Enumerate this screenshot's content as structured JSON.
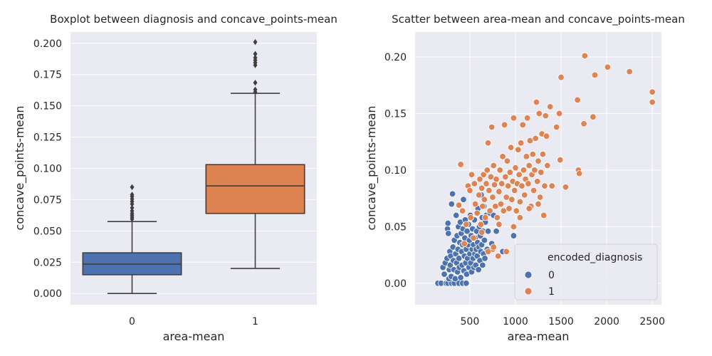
{
  "chart_data": [
    {
      "type": "box",
      "title": "Boxplot between diagnosis and concave_points-mean",
      "xlabel": "area-mean",
      "ylabel": "concave_points-mean",
      "ylim": [
        -0.009,
        0.209
      ],
      "yticks": [
        "0.000",
        "0.025",
        "0.050",
        "0.075",
        "0.100",
        "0.125",
        "0.150",
        "0.175",
        "0.200"
      ],
      "ytick_values": [
        0,
        0.025,
        0.05,
        0.075,
        0.1,
        0.125,
        0.15,
        0.175,
        0.2
      ],
      "categories": [
        "0",
        "1"
      ],
      "colors": [
        "#4c72b0",
        "#dd8452"
      ],
      "grid": true,
      "boxes": [
        {
          "category": "0",
          "whisker_low": 0.0,
          "q1": 0.015,
          "median": 0.0235,
          "q3": 0.0325,
          "whisker_high": 0.0575,
          "outliers": [
            0.0595,
            0.061,
            0.0625,
            0.064,
            0.066,
            0.0685,
            0.0715,
            0.0735,
            0.0755,
            0.0775,
            0.079,
            0.085
          ]
        },
        {
          "category": "1",
          "whisker_low": 0.02,
          "q1": 0.064,
          "median": 0.086,
          "q3": 0.103,
          "whisker_high": 0.16,
          "outliers": [
            0.161,
            0.163,
            0.1685,
            0.1825,
            0.1845,
            0.1865,
            0.1885,
            0.1915,
            0.201
          ]
        }
      ]
    },
    {
      "type": "scatter",
      "title": "Scatter between area-mean and concave_points-mean",
      "xlabel": "area-mean",
      "ylabel": "concave_points-mean",
      "xlim": [
        -100,
        2600
      ],
      "ylim": [
        -0.019,
        0.222
      ],
      "xticks": [
        "500",
        "1000",
        "1500",
        "2000",
        "2500"
      ],
      "xtick_values": [
        500,
        1000,
        1500,
        2000,
        2500
      ],
      "yticks": [
        "0.00",
        "0.05",
        "0.10",
        "0.15",
        "0.20"
      ],
      "ytick_values": [
        0,
        0.05,
        0.1,
        0.15,
        0.2
      ],
      "grid": true,
      "legend": {
        "title": "encoded_diagnosis",
        "position": "lower right"
      },
      "series": [
        {
          "name": "0",
          "color": "#4c72b0",
          "points": [
            [
              150,
              0.0
            ],
            [
              185,
              0.0
            ],
            [
              240,
              0.0
            ],
            [
              260,
              0.0
            ],
            [
              300,
              0.0
            ],
            [
              330,
              0.0
            ],
            [
              380,
              0.0
            ],
            [
              420,
              0.0
            ],
            [
              460,
              0.0
            ],
            [
              205,
              0.014
            ],
            [
              220,
              0.008
            ],
            [
              230,
              0.018
            ],
            [
              250,
              0.022
            ],
            [
              255,
              0.048
            ],
            [
              260,
              0.053
            ],
            [
              265,
              0.044
            ],
            [
              270,
              0.004
            ],
            [
              275,
              0.012
            ],
            [
              280,
              0.028
            ],
            [
              285,
              0.016
            ],
            [
              290,
              0.024
            ],
            [
              295,
              0.006
            ],
            [
              300,
              0.07
            ],
            [
              310,
              0.079
            ],
            [
              315,
              0.032
            ],
            [
              320,
              0.02
            ],
            [
              325,
              0.012
            ],
            [
              330,
              0.038
            ],
            [
              340,
              0.004
            ],
            [
              345,
              0.026
            ],
            [
              350,
              0.06
            ],
            [
              355,
              0.018
            ],
            [
              360,
              0.042
            ],
            [
              365,
              0.01
            ],
            [
              370,
              0.03
            ],
            [
              375,
              0.05
            ],
            [
              380,
              0.022
            ],
            [
              385,
              0.014
            ],
            [
              390,
              0.036
            ],
            [
              395,
              0.054
            ],
            [
              400,
              0.005
            ],
            [
              405,
              0.044
            ],
            [
              410,
              0.028
            ],
            [
              415,
              0.016
            ],
            [
              420,
              0.034
            ],
            [
              425,
              0.048
            ],
            [
              430,
              0.074
            ],
            [
              435,
              0.011
            ],
            [
              440,
              0.024
            ],
            [
              445,
              0.04
            ],
            [
              450,
              0.056
            ],
            [
              455,
              0.018
            ],
            [
              460,
              0.03
            ],
            [
              465,
              0.008
            ],
            [
              470,
              0.046
            ],
            [
              475,
              0.022
            ],
            [
              480,
              0.034
            ],
            [
              485,
              0.052
            ],
            [
              490,
              0.014
            ],
            [
              495,
              0.038
            ],
            [
              500,
              0.026
            ],
            [
              505,
              0.06
            ],
            [
              510,
              0.018
            ],
            [
              515,
              0.042
            ],
            [
              520,
              0.01
            ],
            [
              525,
              0.03
            ],
            [
              530,
              0.048
            ],
            [
              535,
              0.022
            ],
            [
              540,
              0.034
            ],
            [
              545,
              0.014
            ],
            [
              550,
              0.056
            ],
            [
              555,
              0.026
            ],
            [
              560,
              0.04
            ],
            [
              565,
              0.016
            ],
            [
              570,
              0.03
            ],
            [
              575,
              0.046
            ],
            [
              580,
              0.024
            ],
            [
              585,
              0.036
            ],
            [
              590,
              0.066
            ],
            [
              595,
              0.012
            ],
            [
              600,
              0.032
            ],
            [
              605,
              0.05
            ],
            [
              610,
              0.02
            ],
            [
              615,
              0.042
            ],
            [
              620,
              0.028
            ],
            [
              625,
              0.078
            ],
            [
              630,
              0.034
            ],
            [
              635,
              0.058
            ],
            [
              640,
              0.016
            ],
            [
              645,
              0.046
            ],
            [
              650,
              0.026
            ],
            [
              655,
              0.068
            ],
            [
              660,
              0.038
            ],
            [
              665,
              0.022
            ],
            [
              670,
              0.054
            ],
            [
              680,
              0.06
            ],
            [
              690,
              0.03
            ],
            [
              700,
              0.046
            ],
            [
              720,
              0.062
            ],
            [
              740,
              0.035
            ],
            [
              760,
              0.06
            ],
            [
              790,
              0.046
            ],
            [
              860,
              0.028
            ],
            [
              980,
              0.042
            ]
          ]
        },
        {
          "name": "1",
          "color": "#dd8452",
          "points": [
            [
              380,
              0.069
            ],
            [
              400,
              0.105
            ],
            [
              420,
              0.064
            ],
            [
              440,
              0.035
            ],
            [
              460,
              0.052
            ],
            [
              480,
              0.086
            ],
            [
              500,
              0.082
            ],
            [
              510,
              0.058
            ],
            [
              520,
              0.096
            ],
            [
              540,
              0.04
            ],
            [
              550,
              0.088
            ],
            [
              560,
              0.07
            ],
            [
              580,
              0.062
            ],
            [
              600,
              0.078
            ],
            [
              610,
              0.092
            ],
            [
              620,
              0.052
            ],
            [
              630,
              0.084
            ],
            [
              640,
              0.068
            ],
            [
              650,
              0.096
            ],
            [
              660,
              0.074
            ],
            [
              670,
              0.058
            ],
            [
              680,
              0.088
            ],
            [
              690,
              0.1
            ],
            [
              700,
              0.124
            ],
            [
              710,
              0.082
            ],
            [
              720,
              0.064
            ],
            [
              730,
              0.094
            ],
            [
              740,
              0.138
            ],
            [
              750,
              0.076
            ],
            [
              760,
              0.104
            ],
            [
              770,
              0.087
            ],
            [
              780,
              0.068
            ],
            [
              790,
              0.092
            ],
            [
              800,
              0.058
            ],
            [
              810,
              0.024
            ],
            [
              820,
              0.081
            ],
            [
              830,
              0.1
            ],
            [
              840,
              0.07
            ],
            [
              850,
              0.088
            ],
            [
              860,
              0.112
            ],
            [
              870,
              0.064
            ],
            [
              880,
              0.14
            ],
            [
              890,
              0.094
            ],
            [
              900,
              0.076
            ],
            [
              910,
              0.108
            ],
            [
              920,
              0.086
            ],
            [
              930,
              0.066
            ],
            [
              940,
              0.098
            ],
            [
              950,
              0.12
            ],
            [
              960,
              0.074
            ],
            [
              970,
              0.09
            ],
            [
              980,
              0.146
            ],
            [
              990,
              0.082
            ],
            [
              1000,
              0.102
            ],
            [
              1010,
              0.064
            ],
            [
              1020,
              0.088
            ],
            [
              1030,
              0.118
            ],
            [
              1040,
              0.096
            ],
            [
              1050,
              0.072
            ],
            [
              1060,
              0.124
            ],
            [
              1070,
              0.086
            ],
            [
              1080,
              0.14
            ],
            [
              1090,
              0.1
            ],
            [
              1100,
              0.078
            ],
            [
              1110,
              0.092
            ],
            [
              1120,
              0.112
            ],
            [
              1130,
              0.146
            ],
            [
              1140,
              0.088
            ],
            [
              1150,
              0.104
            ],
            [
              1160,
              0.126
            ],
            [
              1170,
              0.068
            ],
            [
              1180,
              0.096
            ],
            [
              1190,
              0.114
            ],
            [
              1200,
              0.082
            ],
            [
              1210,
              0.1
            ],
            [
              1220,
              0.128
            ],
            [
              1230,
              0.16
            ],
            [
              1240,
              0.09
            ],
            [
              1250,
              0.108
            ],
            [
              1260,
              0.15
            ],
            [
              1270,
              0.076
            ],
            [
              1280,
              0.098
            ],
            [
              1290,
              0.132
            ],
            [
              1300,
              0.114
            ],
            [
              1310,
              0.06
            ],
            [
              1320,
              0.086
            ],
            [
              1330,
              0.148
            ],
            [
              1340,
              0.13
            ],
            [
              1350,
              0.104
            ],
            [
              1380,
              0.156
            ],
            [
              1400,
              0.086
            ],
            [
              1450,
              0.138
            ],
            [
              1480,
              0.15
            ],
            [
              1490,
              0.109
            ],
            [
              1500,
              0.182
            ],
            [
              1550,
              0.085
            ],
            [
              1680,
              0.162
            ],
            [
              1690,
              0.1
            ],
            [
              1700,
              0.097
            ],
            [
              1750,
              0.141
            ],
            [
              1760,
              0.201
            ],
            [
              1850,
              0.147
            ],
            [
              1870,
              0.184
            ],
            [
              2010,
              0.191
            ],
            [
              2250,
              0.187
            ],
            [
              2500,
              0.169
            ],
            [
              2500,
              0.16
            ],
            [
              630,
              0.045
            ],
            [
              750,
              0.03
            ],
            [
              900,
              0.028
            ],
            [
              980,
              0.05
            ],
            [
              700,
              0.028
            ],
            [
              760,
              0.032
            ],
            [
              820,
              0.052
            ],
            [
              1050,
              0.058
            ],
            [
              1150,
              0.066
            ],
            [
              1250,
              0.07
            ]
          ]
        }
      ]
    }
  ]
}
